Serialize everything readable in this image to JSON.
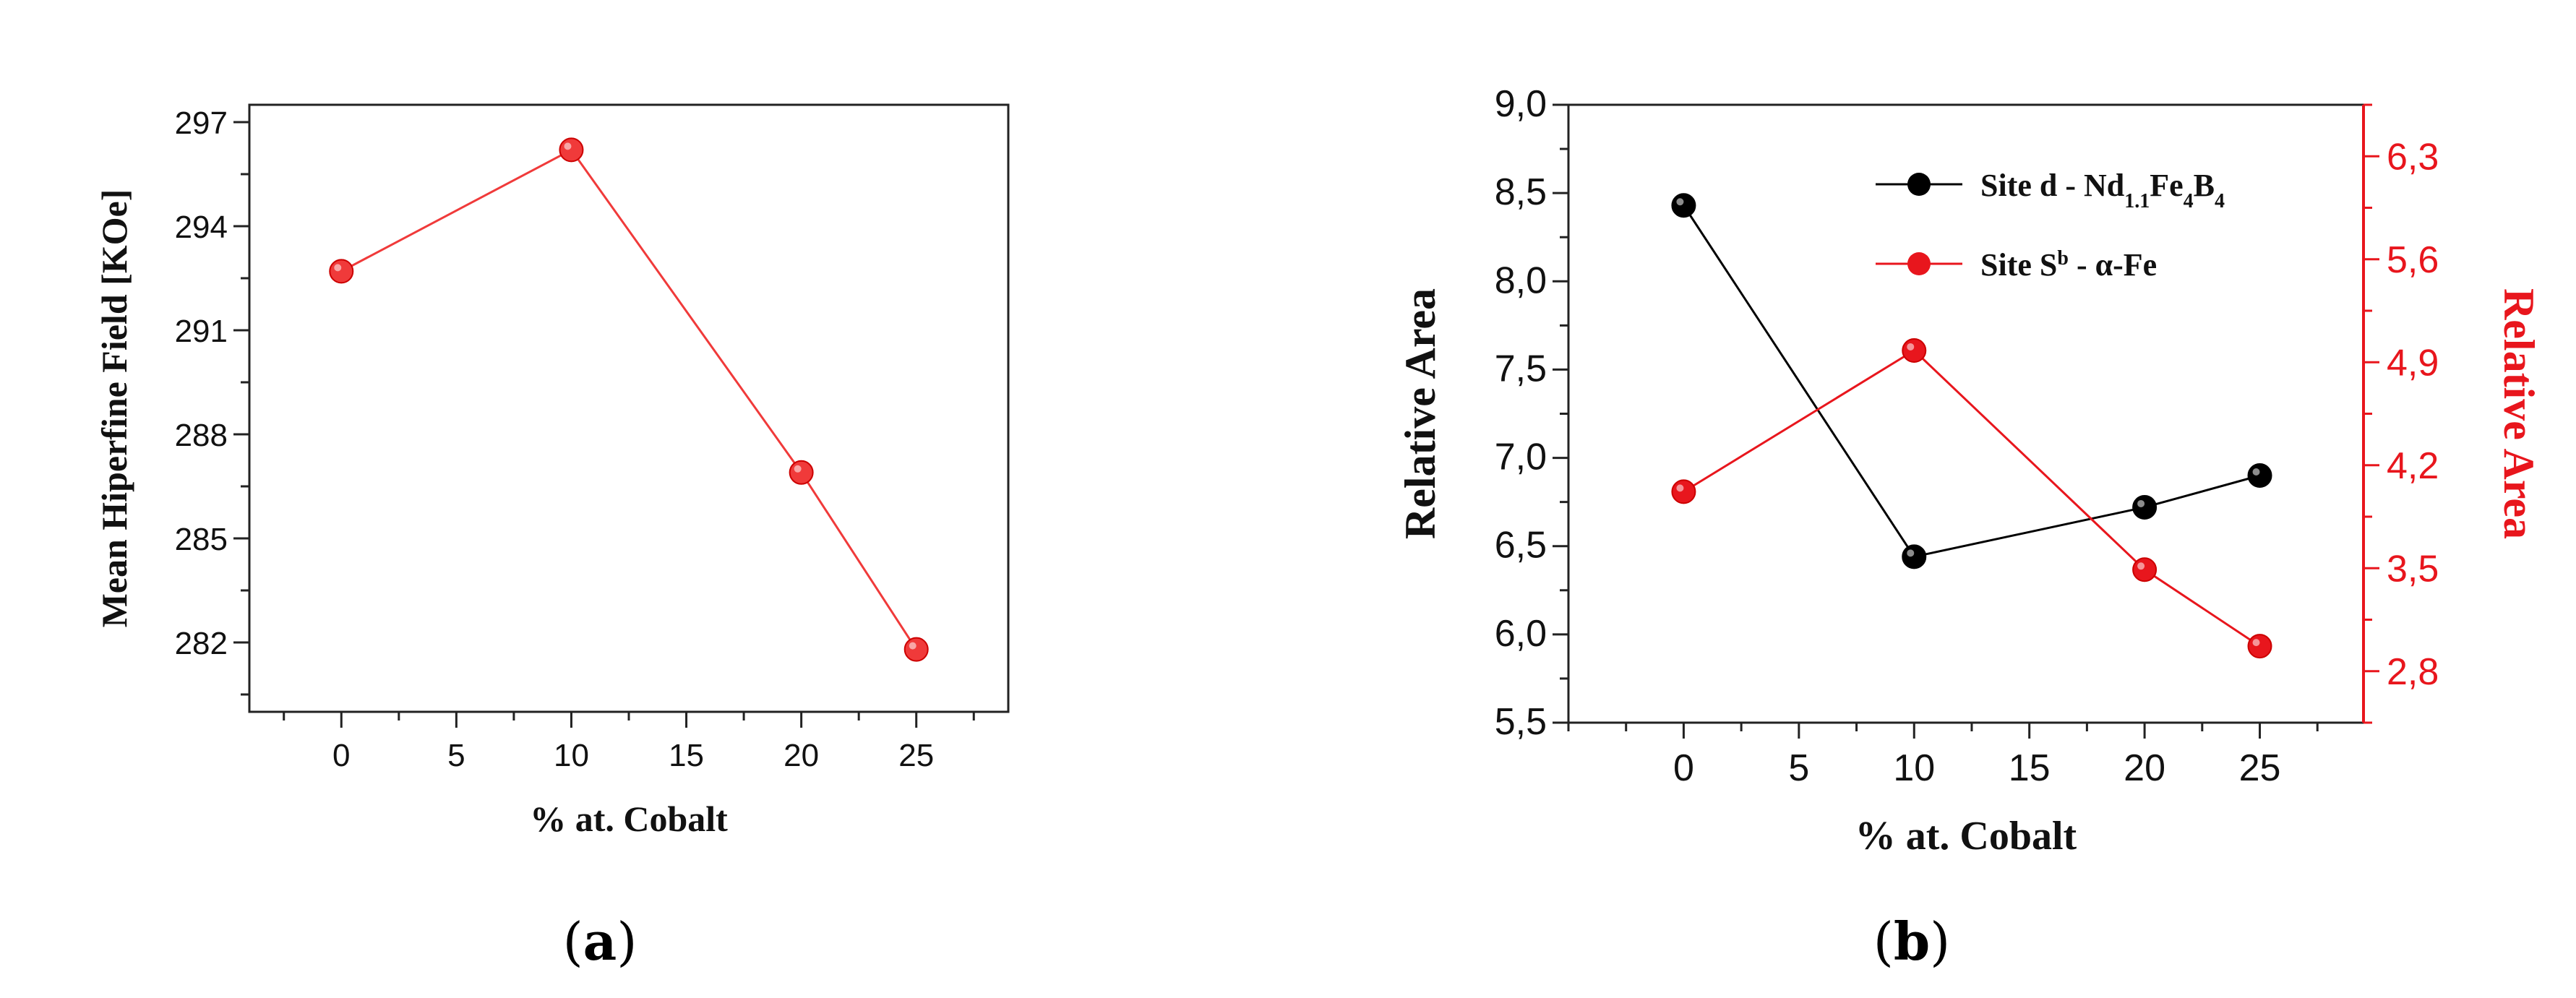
{
  "captions": {
    "a": "a",
    "b": "b"
  },
  "chart_data": [
    {
      "id": "a",
      "type": "line",
      "title": "",
      "xlabel": "% at. Cobalt",
      "ylabel": "Mean Hiperfine Field [KOe]",
      "xlim": [
        -4,
        29
      ],
      "ylim": [
        280,
        297.5
      ],
      "xticks": [
        "0",
        "5",
        "10",
        "15",
        "20",
        "25"
      ],
      "yticks": [
        "282",
        "285",
        "288",
        "291",
        "294",
        "297"
      ],
      "series": [
        {
          "color": "#f03a3a",
          "points": [
            [
              0,
              292.7
            ],
            [
              10,
              296.2
            ],
            [
              20,
              286.9
            ],
            [
              25,
              281.8
            ]
          ]
        }
      ]
    },
    {
      "id": "b",
      "type": "line",
      "title": "",
      "xlabel": "% at. Cobalt",
      "ylabel": "Relative Area",
      "ylabel_right": "Relative Area",
      "xlim": [
        -5,
        29.5
      ],
      "ylim": [
        5.5,
        9.0
      ],
      "ylim_right": [
        2.45,
        6.65
      ],
      "xticks": [
        "0",
        "5",
        "10",
        "15",
        "20",
        "25"
      ],
      "yticks": [
        "5,5",
        "6,0",
        "6,5",
        "7,0",
        "7,5",
        "8,0",
        "8,5",
        "9,0"
      ],
      "yticks_right": [
        "2,8",
        "3,5",
        "4,2",
        "4,9",
        "5,6",
        "6,3"
      ],
      "legend_position": "top-right",
      "series": [
        {
          "name": "Site d - Nd1.1Fe4B4",
          "axis": "left",
          "color": "#000000",
          "points": [
            [
              0,
              8.43
            ],
            [
              10,
              6.44
            ],
            [
              20,
              6.72
            ],
            [
              25,
              6.9
            ]
          ]
        },
        {
          "name": "Site Sb - α-Fe",
          "axis": "right",
          "color": "#e8161d",
          "points": [
            [
              0,
              4.02
            ],
            [
              10,
              4.98
            ],
            [
              20,
              3.49
            ],
            [
              25,
              2.97
            ]
          ]
        }
      ],
      "legend": [
        {
          "parts": [
            [
              "Site d - Nd",
              ""
            ],
            [
              "1.1",
              "sub"
            ],
            [
              "Fe",
              ""
            ],
            [
              "4",
              "sub"
            ],
            [
              "B",
              ""
            ],
            [
              "4",
              "sub"
            ]
          ]
        },
        {
          "parts": [
            [
              "Site S",
              ""
            ],
            [
              "b",
              "sup"
            ],
            [
              " - α-Fe",
              ""
            ]
          ]
        }
      ]
    }
  ]
}
